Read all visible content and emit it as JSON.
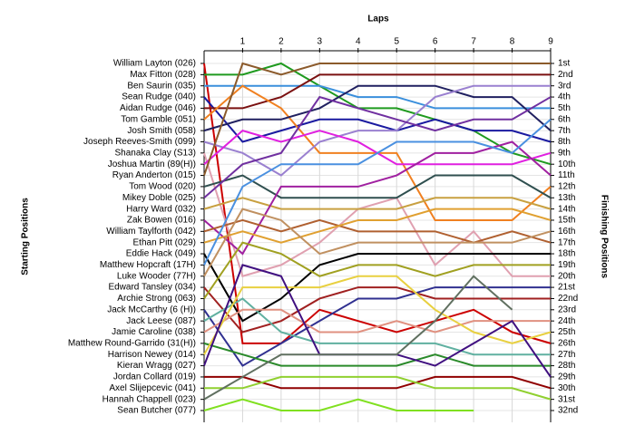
{
  "chart_data": {
    "type": "line",
    "title": "Laps",
    "y_label": "Starting Positions",
    "y2_label": "Finishing Positions",
    "x": [
      0,
      1,
      2,
      3,
      4,
      5,
      6,
      7,
      8,
      9
    ],
    "xlim": [
      0,
      9
    ],
    "xticks": [
      1,
      2,
      3,
      4,
      5,
      6,
      7,
      8,
      9
    ],
    "ylim": [
      1,
      32
    ],
    "grid": true,
    "finishing_positions": [
      "1st",
      "2nd",
      "3rd",
      "4th",
      "5th",
      "6th",
      "7th",
      "8th",
      "9th",
      "10th",
      "11th",
      "12th",
      "13th",
      "14th",
      "15th",
      "16th",
      "17th",
      "18th",
      "19th",
      "20th",
      "21st",
      "22nd",
      "23rd",
      "24th",
      "25th",
      "26th",
      "27th",
      "28th",
      "29th",
      "30th",
      "31st",
      "32nd"
    ],
    "series": [
      {
        "name": "William Layton (026)",
        "color": "#cc0000",
        "values": [
          1,
          26,
          26,
          23,
          24,
          25,
          24,
          23,
          25,
          26
        ]
      },
      {
        "name": "Max Fitton (028)",
        "color": "#1f9a1f",
        "values": [
          2,
          2,
          1,
          3,
          5,
          5,
          6,
          7,
          9,
          10
        ]
      },
      {
        "name": "Ben Saurin (035)",
        "color": "#3a8fdc",
        "values": [
          3,
          3,
          3,
          3,
          4,
          4,
          5,
          5,
          5,
          5
        ]
      },
      {
        "name": "Sean Rudge (040)",
        "color": "#1a1aa0",
        "values": [
          4,
          8,
          7,
          6,
          6,
          7,
          6,
          7,
          7,
          8
        ]
      },
      {
        "name": "Aidan Rudge (046)",
        "color": "#7a1010",
        "values": [
          5,
          5,
          4,
          2,
          2,
          2,
          2,
          2,
          2,
          2
        ]
      },
      {
        "name": "Tom Gamble (051)",
        "color": "#f08020",
        "values": [
          6,
          3,
          5,
          9,
          9,
          9,
          15,
          15,
          15,
          12
        ]
      },
      {
        "name": "Josh Smith (058)",
        "color": "#202060",
        "values": [
          7,
          6,
          6,
          5,
          3,
          3,
          3,
          4,
          4,
          7
        ]
      },
      {
        "name": "Joseph Reeves-Smith (099)",
        "color": "#9a80d0",
        "values": [
          8,
          9,
          11,
          8,
          7,
          7,
          4,
          3,
          3,
          3
        ]
      },
      {
        "name": "Shanaka Clay (S13)",
        "color": "#e0a0b0",
        "values": [
          9,
          20,
          19,
          17,
          14,
          13,
          19,
          16,
          20,
          20
        ]
      },
      {
        "name": "Joshua Martin (89(H))",
        "color": "#e020e0",
        "values": [
          10,
          7,
          8,
          7,
          8,
          10,
          10,
          10,
          10,
          9
        ]
      },
      {
        "name": "Ryan Anderton (015)",
        "color": "#8b5a2b",
        "values": [
          11,
          1,
          2,
          1,
          1,
          1,
          1,
          1,
          1,
          1
        ]
      },
      {
        "name": "Tom Wood (020)",
        "color": "#2f4f4f",
        "values": [
          12,
          11,
          13,
          13,
          13,
          13,
          11,
          11,
          11,
          13
        ]
      },
      {
        "name": "Mikey Doble (025)",
        "color": "#7030a0",
        "values": [
          13,
          10,
          9,
          4,
          5,
          6,
          7,
          6,
          6,
          4
        ]
      },
      {
        "name": "Harry Ward (032)",
        "color": "#c8a040",
        "values": [
          14,
          13,
          14,
          14,
          14,
          14,
          13,
          13,
          13,
          14
        ]
      },
      {
        "name": "Zak Bowen (016)",
        "color": "#a020a0",
        "values": [
          15,
          18,
          12,
          12,
          12,
          11,
          9,
          9,
          8,
          11
        ]
      },
      {
        "name": "William Taylforth (042)",
        "color": "#b06030",
        "values": [
          16,
          15,
          16,
          15,
          16,
          16,
          16,
          17,
          16,
          17
        ]
      },
      {
        "name": "Ethan Pitt (029)",
        "color": "#e0a030",
        "values": [
          17,
          16,
          17,
          16,
          15,
          15,
          14,
          14,
          14,
          15
        ]
      },
      {
        "name": "Eddie Hack (049)",
        "color": "#000000",
        "values": [
          18,
          24,
          22,
          19,
          18,
          18,
          18,
          18,
          18,
          18
        ]
      },
      {
        "name": "Matthew Hopcraft (17H)",
        "color": "#4a90e0",
        "values": [
          19,
          12,
          10,
          10,
          10,
          8,
          8,
          8,
          9,
          6
        ]
      },
      {
        "name": "Luke Wooder (77H)",
        "color": "#c09060",
        "values": [
          20,
          14,
          15,
          18,
          17,
          17,
          17,
          17,
          17,
          16
        ]
      },
      {
        "name": "Edward Tansley (034)",
        "color": "#a02020",
        "values": [
          21,
          25,
          24,
          22,
          21,
          21,
          22,
          22,
          22,
          22
        ]
      },
      {
        "name": "Archie Strong (063)",
        "color": "#a0a020",
        "values": [
          22,
          17,
          18,
          20,
          19,
          19,
          20,
          19,
          19,
          19
        ]
      },
      {
        "name": "Jack McCarthy (6 (H))",
        "color": "#303090",
        "values": [
          23,
          28,
          26,
          24,
          22,
          22,
          21,
          21,
          21,
          21
        ]
      },
      {
        "name": "Jack Leese (087)",
        "color": "#60b0a0",
        "values": [
          24,
          22,
          25,
          26,
          26,
          26,
          26,
          27,
          27,
          27
        ]
      },
      {
        "name": "Jamie Caroline (038)",
        "color": "#e09080",
        "values": [
          25,
          23,
          23,
          25,
          25,
          24,
          25,
          24,
          24,
          24
        ]
      },
      {
        "name": "Matthew Round-Garrido (31(H))",
        "color": "#2a8a2a",
        "values": [
          26,
          27,
          28,
          28,
          28,
          28,
          27,
          28,
          28,
          28
        ]
      },
      {
        "name": "Harrison Newey (014)",
        "color": "#e8d040",
        "values": [
          27,
          21,
          21,
          21,
          20,
          20,
          23,
          25,
          26,
          25
        ]
      },
      {
        "name": "Kieran Wragg (027)",
        "color": "#401080",
        "values": [
          28,
          19,
          20,
          27,
          27,
          27,
          28,
          26,
          24,
          29
        ]
      },
      {
        "name": "Jordan Collard (019)",
        "color": "#900000",
        "values": [
          29,
          29,
          30,
          30,
          30,
          30,
          29,
          29,
          29,
          30
        ]
      },
      {
        "name": "Axel Slijepcevic (041)",
        "color": "#90d030",
        "values": [
          30,
          30,
          29,
          29,
          29,
          29,
          30,
          30,
          30,
          31
        ]
      },
      {
        "name": "Hannah Chappell (023)",
        "color": "#607060",
        "values": [
          31,
          29,
          27,
          27,
          27,
          27,
          24,
          20,
          23,
          null
        ]
      },
      {
        "name": "Sean Butcher (077)",
        "color": "#80e020",
        "values": [
          32,
          31,
          32,
          32,
          31,
          32,
          32,
          32,
          null,
          null
        ]
      }
    ]
  }
}
